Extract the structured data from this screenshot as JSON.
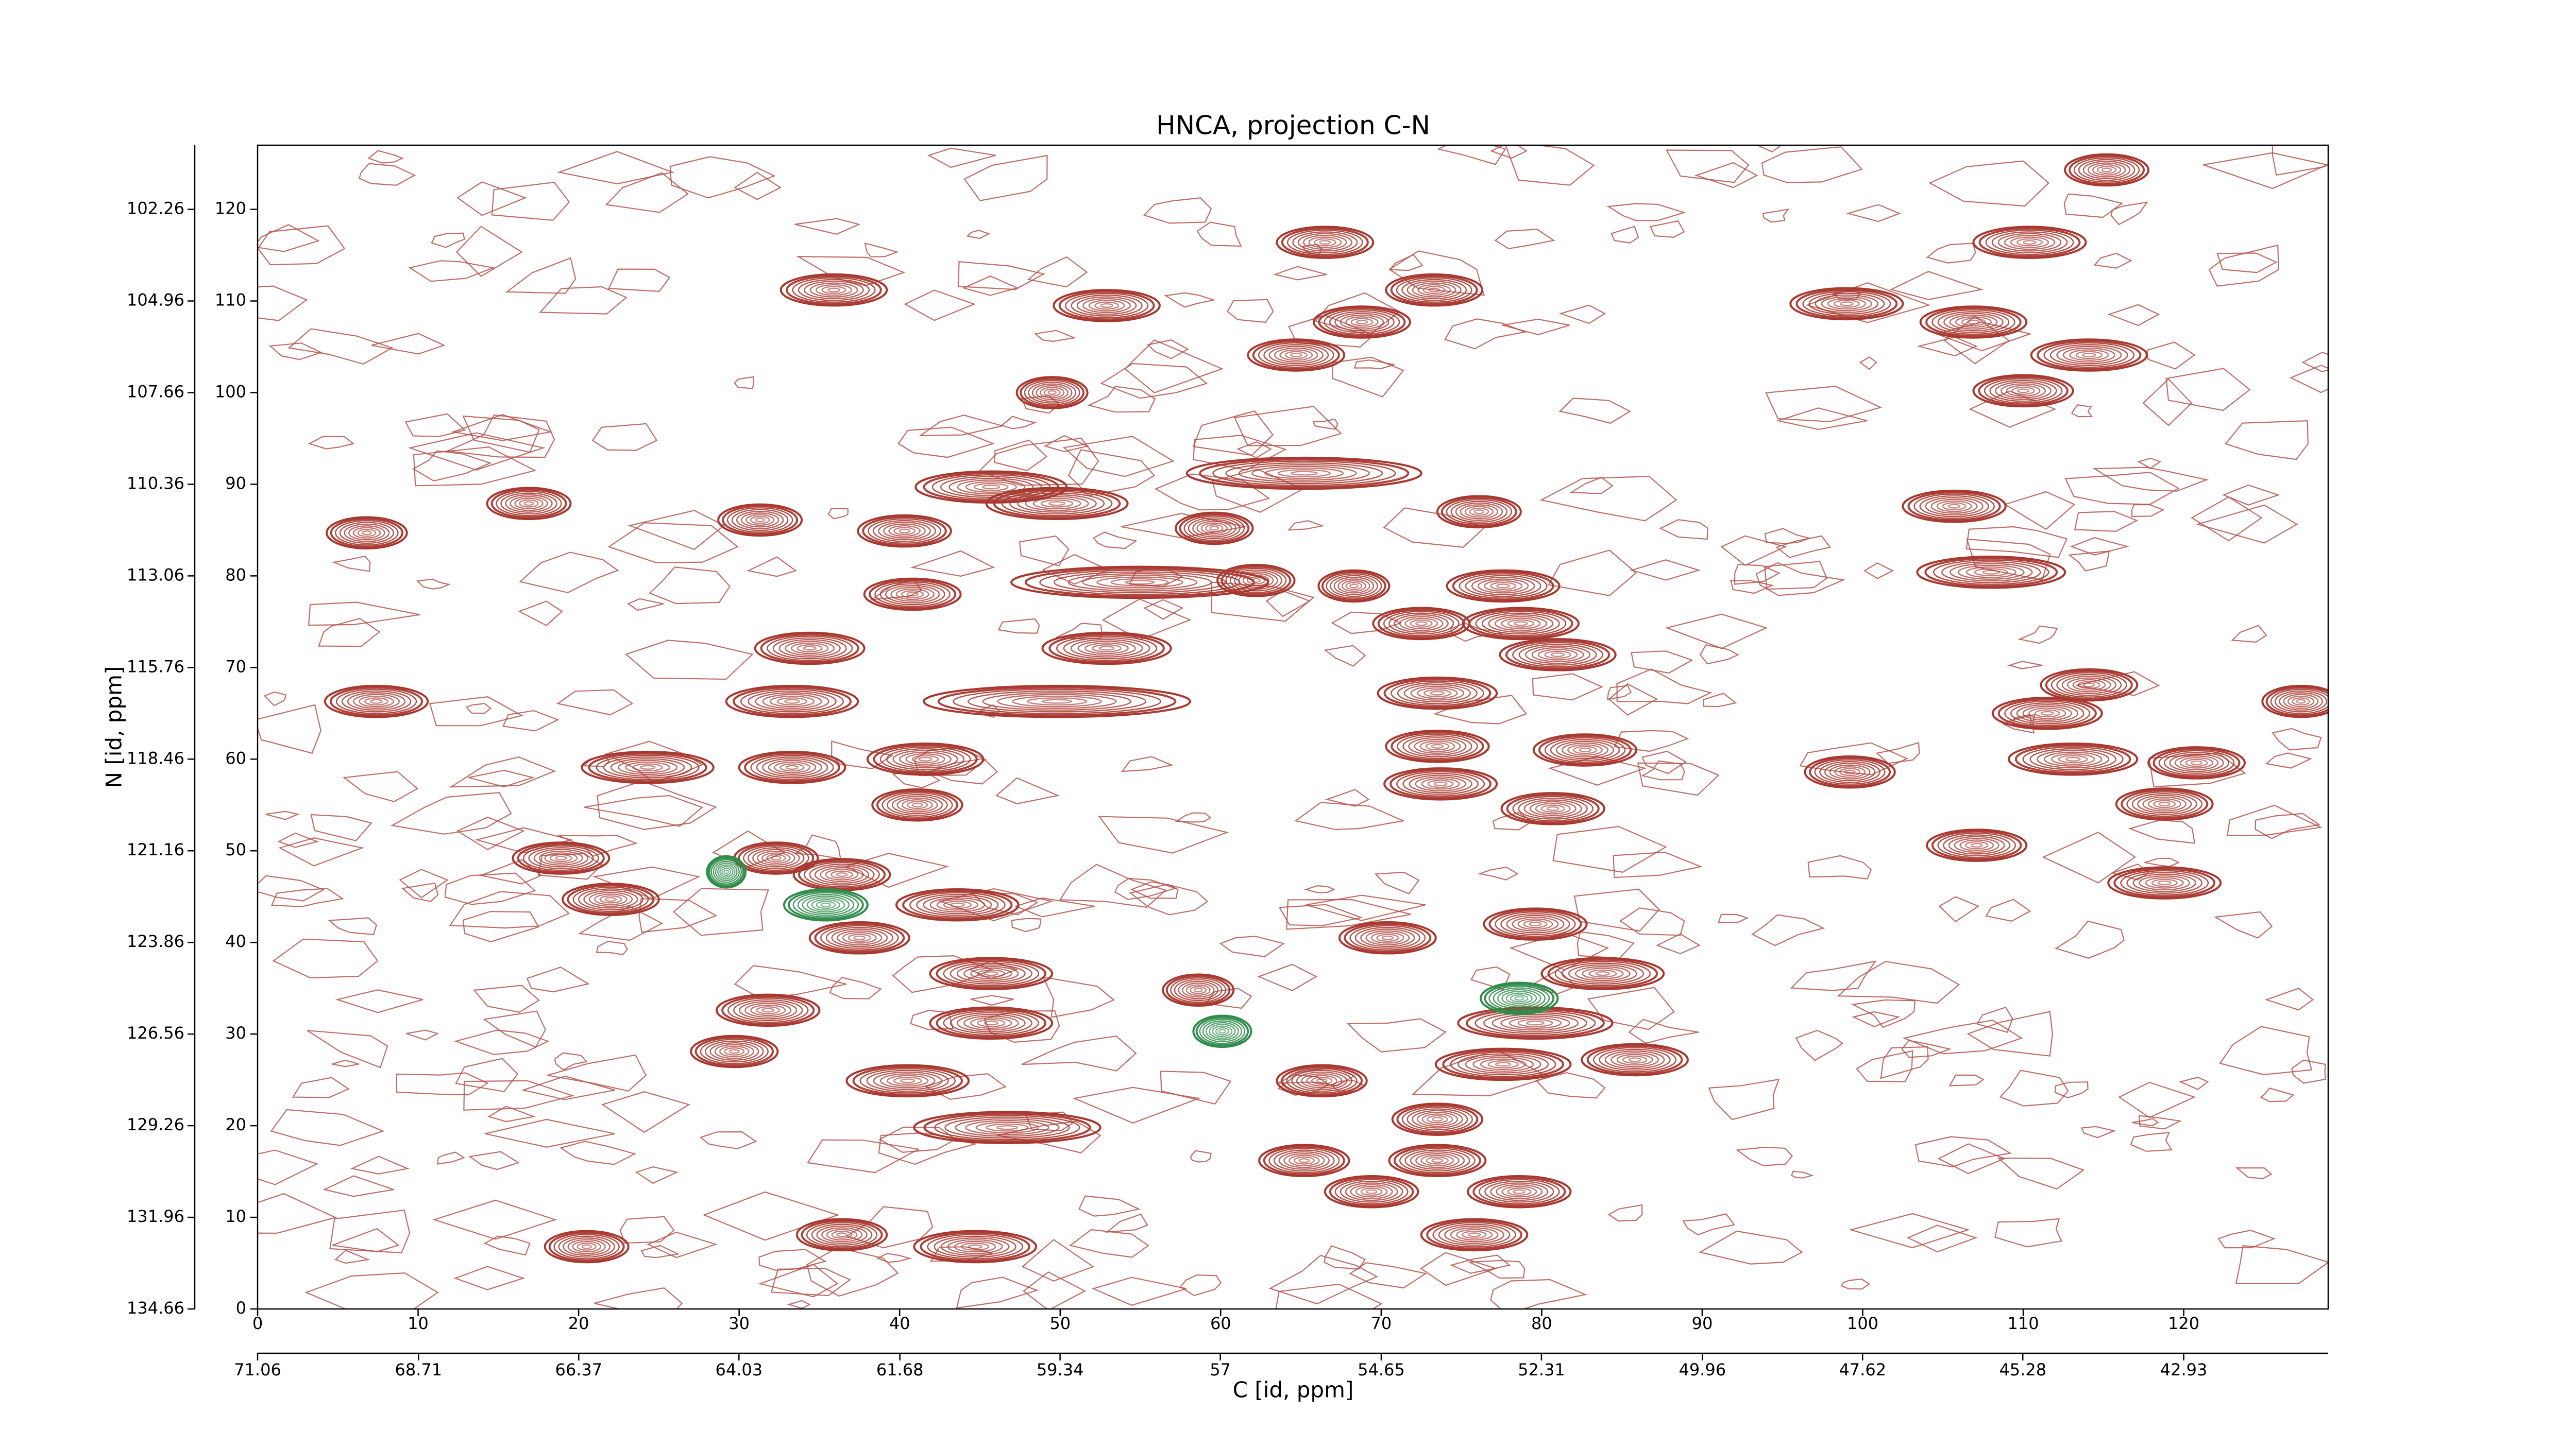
{
  "chart_data": {
    "type": "contour",
    "title": "HNCA, projection C-N",
    "x_label": "C [id, ppm]",
    "y_label": "N [id, ppm]",
    "xlim": [
      0,
      129
    ],
    "xticks": [
      0,
      10,
      20,
      30,
      40,
      50,
      60,
      70,
      80,
      90,
      100,
      110,
      120
    ],
    "ylim": [
      0,
      127
    ],
    "yticks": [
      0,
      10,
      20,
      30,
      40,
      50,
      60,
      70,
      80,
      90,
      100,
      110,
      120
    ],
    "x2lim": [
      71.06,
      40.82
    ],
    "x2ticks": [
      71.06,
      68.71,
      66.37,
      64.03,
      61.68,
      59.34,
      57.0,
      54.65,
      52.31,
      49.96,
      47.62,
      45.28,
      42.93
    ],
    "y2lim": [
      134.66,
      100.37
    ],
    "y2ticks": [
      134.66,
      131.96,
      129.26,
      126.56,
      123.86,
      121.16,
      118.46,
      115.76,
      113.06,
      110.36,
      107.66,
      104.96,
      102.26
    ],
    "series": [
      {
        "color": "#a8382f",
        "x": [
          35.9,
          115.2,
          110.4,
          66.5,
          73.3,
          52.9,
          68.8,
          99,
          106.9,
          64.7,
          114.1,
          110,
          49.5,
          65.2,
          45.7,
          49.8,
          31.3,
          76.1,
          105.7,
          59.6,
          40.3,
          6.8,
          16.9,
          108,
          54.96,
          40.8,
          62.2,
          68.3,
          77.6,
          72.5,
          78.7,
          81,
          52.9,
          34.4,
          114.1,
          127.3,
          7.4,
          33.3,
          49.8,
          73.5,
          111.5,
          113.1,
          120.8,
          24.3,
          33.3,
          41.6,
          73.5,
          82.7,
          99.2,
          118.8,
          80.7,
          41.1,
          73.7,
          18.9,
          22,
          36.4,
          107.1,
          118.8,
          32.3,
          43.6,
          37.5,
          70.4,
          79.6,
          83.8,
          45.7,
          58.6,
          79.6,
          31.8,
          45.7,
          29.7,
          85.8,
          66.3,
          40.5,
          77.6,
          46.7,
          73.5,
          65.2,
          73.5,
          36.4,
          44.7,
          75.8,
          20.5,
          69.4,
          78.6
        ],
        "y": [
          111.2,
          124.3,
          116.4,
          116.4,
          111.2,
          109.5,
          107.7,
          109.7,
          107.7,
          104.1,
          104.1,
          100.2,
          100,
          91.2,
          89.7,
          87.9,
          86.1,
          87,
          87.6,
          85.2,
          84.9,
          84.7,
          87.9,
          80.4,
          79.3,
          78,
          79.5,
          78.9,
          78.9,
          74.8,
          74.8,
          71.4,
          72.1,
          72.1,
          68.1,
          66.3,
          66.3,
          66.3,
          66.3,
          67.2,
          65,
          60,
          59.6,
          59.1,
          59.1,
          60,
          61.4,
          61,
          58.6,
          55.1,
          54.6,
          55,
          57.3,
          49.2,
          44.7,
          47.4,
          50.6,
          46.5,
          49.2,
          44.1,
          40.5,
          40.5,
          42,
          36.6,
          36.6,
          34.8,
          31.2,
          32.6,
          31.2,
          28.1,
          27.2,
          24.9,
          24.9,
          26.7,
          19.8,
          20.7,
          16.2,
          16.2,
          8.1,
          6.8,
          8.1,
          6.8,
          12.8,
          12.8
        ],
        "widths": [
          3.3,
          2.6,
          3.5,
          3,
          3,
          3.3,
          3,
          3.5,
          3.3,
          3,
          3.6,
          3.1,
          2.2,
          7.3,
          4.7,
          4.4,
          2.6,
          2.6,
          3.2,
          2.4,
          2.9,
          2.5,
          2.6,
          4.6,
          8,
          3,
          2.4,
          2.2,
          3.5,
          3,
          3.6,
          3.6,
          4,
          3.4,
          3,
          2.4,
          3.2,
          4.1,
          8.3,
          3.7,
          3.4,
          4,
          3,
          4.1,
          3.3,
          3.6,
          3.2,
          3.2,
          2.8,
          3,
          3.2,
          2.8,
          3.5,
          3,
          3,
          3,
          3.1,
          3.5,
          2.6,
          3.8,
          3.1,
          3,
          3.2,
          3.8,
          3.8,
          2.2,
          4.8,
          3.2,
          3.8,
          2.7,
          3.3,
          2.8,
          3.8,
          4.2,
          5.8,
          2.8,
          2.8,
          3,
          2.8,
          3.8,
          3.3,
          2.6,
          2.9,
          3.2
        ]
      },
      {
        "color": "#2e8b4a",
        "x": [
          35.4,
          60.1,
          78.6,
          29.2
        ],
        "y": [
          44.1,
          30.3,
          33.9,
          47.7
        ],
        "widths": [
          2.6,
          1.8,
          2.4,
          1.2
        ]
      }
    ]
  }
}
